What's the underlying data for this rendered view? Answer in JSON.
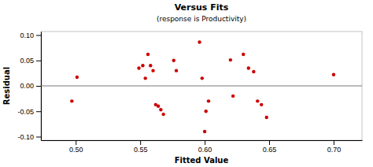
{
  "chart_data": {
    "type": "scatter",
    "title": "Versus Fits",
    "subtitle": "(response is Productivity)",
    "xlabel": "Fitted Value",
    "ylabel": "Residual",
    "x": [
      0.497,
      0.501,
      0.549,
      0.552,
      0.554,
      0.556,
      0.558,
      0.56,
      0.562,
      0.564,
      0.566,
      0.568,
      0.576,
      0.578,
      0.596,
      0.598,
      0.6,
      0.601,
      0.603,
      0.62,
      0.622,
      0.63,
      0.634,
      0.638,
      0.641,
      0.644,
      0.648,
      0.7
    ],
    "values": [
      -0.03,
      0.017,
      0.035,
      0.04,
      0.015,
      0.062,
      0.04,
      0.03,
      -0.037,
      -0.04,
      -0.047,
      -0.056,
      0.05,
      0.03,
      0.086,
      0.015,
      -0.09,
      -0.05,
      -0.03,
      0.051,
      -0.02,
      0.062,
      0.035,
      0.028,
      -0.03,
      -0.037,
      -0.062,
      0.022
    ],
    "color": "#cc0000",
    "hline_y": 0.0,
    "xlim": [
      0.473,
      0.722
    ],
    "ylim": [
      -0.107,
      0.107
    ],
    "xticks": [
      {
        "value": 0.5,
        "label": "0.50"
      },
      0.55,
      {
        "value": 0.6,
        "label": "0.60"
      },
      0.65,
      {
        "value": 0.7,
        "label": "0.70"
      }
    ],
    "yticks": [
      {
        "value": -0.1,
        "label": "-0.10"
      },
      -0.05,
      {
        "value": 0.0,
        "label": "0.00"
      },
      0.05,
      {
        "value": 0.1,
        "label": "0.10"
      }
    ],
    "grid": false
  }
}
